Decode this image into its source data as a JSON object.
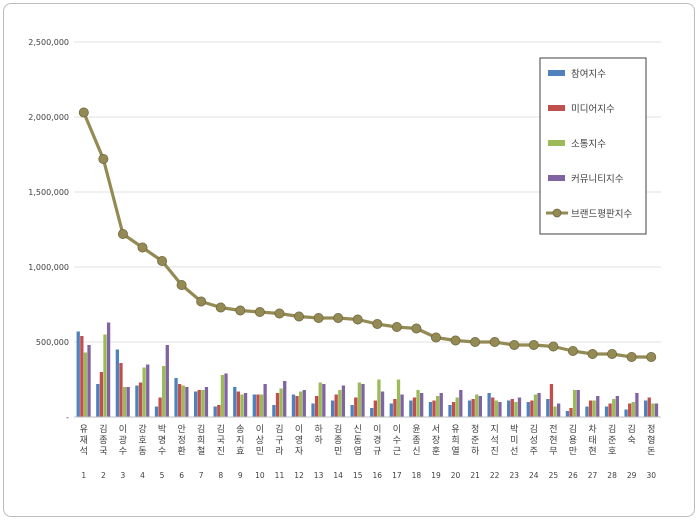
{
  "chart_data": {
    "type": "bar",
    "title": "",
    "xlabel": "",
    "ylabel": "",
    "ylim": [
      0,
      2500000
    ],
    "yticks": [
      "-",
      "500,000",
      "1,000,000",
      "1,500,000",
      "2,000,000",
      "2,500,000"
    ],
    "grid": true,
    "legend_position": "top-right",
    "categories": [
      "유재석",
      "김종국",
      "이광수",
      "강호동",
      "박명수",
      "안정환",
      "김희철",
      "김국진",
      "송지효",
      "이상민",
      "김구라",
      "이영자",
      "하하",
      "김종민",
      "신동엽",
      "이경규",
      "이수근",
      "윤종신",
      "서장훈",
      "유희열",
      "정준하",
      "지석진",
      "박미선",
      "김성주",
      "전현무",
      "김용만",
      "차태현",
      "김준호",
      "김숙",
      "정형돈"
    ],
    "numbers": [
      "1",
      "2",
      "3",
      "4",
      "5",
      "6",
      "7",
      "8",
      "9",
      "10",
      "11",
      "12",
      "13",
      "14",
      "15",
      "16",
      "17",
      "18",
      "19",
      "20",
      "21",
      "22",
      "23",
      "24",
      "25",
      "26",
      "27",
      "28",
      "29",
      "30"
    ],
    "series": [
      {
        "name": "참여지수",
        "kind": "bar",
        "color": "#4f81bd",
        "values": [
          570000,
          220000,
          450000,
          210000,
          70000,
          260000,
          170000,
          70000,
          200000,
          150000,
          80000,
          150000,
          90000,
          110000,
          80000,
          60000,
          90000,
          110000,
          100000,
          80000,
          110000,
          160000,
          110000,
          100000,
          120000,
          40000,
          70000,
          70000,
          50000,
          110000
        ]
      },
      {
        "name": "미디어지수",
        "kind": "bar",
        "color": "#c0504d",
        "values": [
          540000,
          300000,
          360000,
          230000,
          130000,
          220000,
          180000,
          80000,
          170000,
          150000,
          160000,
          140000,
          140000,
          150000,
          130000,
          110000,
          120000,
          130000,
          110000,
          100000,
          120000,
          130000,
          120000,
          110000,
          220000,
          60000,
          110000,
          90000,
          90000,
          130000
        ]
      },
      {
        "name": "소통지수",
        "kind": "bar",
        "color": "#9bbb59",
        "values": [
          430000,
          550000,
          200000,
          330000,
          340000,
          210000,
          180000,
          280000,
          150000,
          150000,
          190000,
          170000,
          230000,
          180000,
          230000,
          250000,
          250000,
          180000,
          140000,
          130000,
          150000,
          110000,
          100000,
          150000,
          70000,
          180000,
          110000,
          120000,
          100000,
          90000
        ]
      },
      {
        "name": "커뮤니티지수",
        "kind": "bar",
        "color": "#8064a2",
        "values": [
          480000,
          630000,
          200000,
          350000,
          480000,
          200000,
          200000,
          290000,
          160000,
          220000,
          240000,
          180000,
          220000,
          210000,
          220000,
          170000,
          150000,
          160000,
          160000,
          180000,
          140000,
          100000,
          130000,
          160000,
          90000,
          180000,
          140000,
          140000,
          160000,
          90000
        ]
      },
      {
        "name": "브랜드평판지수",
        "kind": "line",
        "color": "#948a54",
        "values": [
          2030000,
          1720000,
          1220000,
          1130000,
          1040000,
          880000,
          770000,
          730000,
          710000,
          700000,
          690000,
          670000,
          660000,
          660000,
          650000,
          620000,
          600000,
          590000,
          530000,
          510000,
          500000,
          500000,
          480000,
          480000,
          470000,
          440000,
          420000,
          420000,
          400000,
          400000
        ]
      }
    ]
  }
}
